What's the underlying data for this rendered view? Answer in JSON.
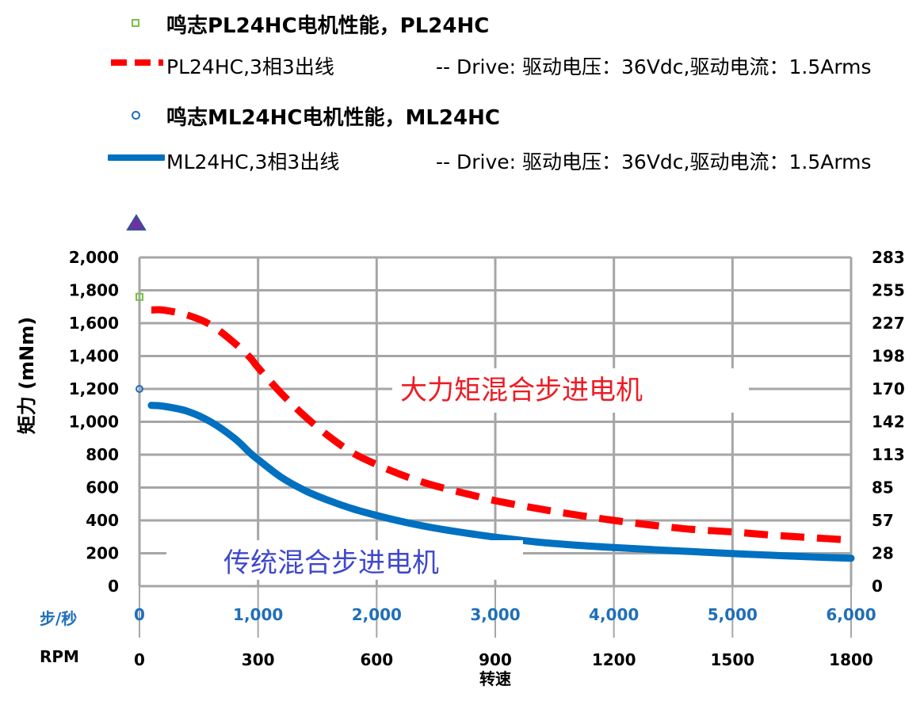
{
  "legend": {
    "pl_title": "鸣志PL24HC电机性能，PL24HC",
    "pl_series": "PL24HC,3相3出线",
    "pl_drive": "-- Drive:  驱动电压：36Vdc,驱动电流：1.5Arms",
    "ml_title": "鸣志ML24HC电机性能，ML24HC",
    "ml_series": "ML24HC,3相3出线",
    "ml_drive": "-- Drive:  驱动电压：36Vdc,驱动电流：1.5Arms"
  },
  "colors": {
    "pl": "#ff0000",
    "ml": "#0070c0",
    "grid": "#a6a6a6",
    "steps_label": "#1f6fb8",
    "annotation_ml": "#3f48cc",
    "annotation_pl": "#ed1c24",
    "triangle": "#7030a0"
  },
  "chart_data": {
    "type": "line",
    "ylabel": "矩力 (mNm)",
    "xlabel": "转速",
    "xlim_rpm": [
      0,
      1800
    ],
    "ylim": [
      0,
      2000
    ],
    "y2lim": [
      0,
      283
    ],
    "grid": true,
    "y_ticks": [
      "2,000",
      "1,800",
      "1,600",
      "1,400",
      "1,200",
      "1,000",
      "800",
      "600",
      "400",
      "200",
      "0"
    ],
    "y2_ticks": [
      "283",
      "255",
      "227",
      "198",
      "170",
      "142",
      "113",
      "85",
      "57",
      "28",
      "0"
    ],
    "x_rpm_ticks": [
      "0",
      "300",
      "600",
      "900",
      "1200",
      "1500",
      "1800"
    ],
    "x_steps_ticks": [
      "0",
      "1,000",
      "2,000",
      "3,000",
      "4,000",
      "5,000",
      "6,000"
    ],
    "x_steps_label": "步/秒",
    "x_rpm_label": "RPM",
    "annotations": [
      "大力矩混合步进电机",
      "传统混合步进电机"
    ],
    "series": [
      {
        "name": "PL24HC,3相3出线",
        "style": "dashed",
        "x": [
          30,
          60,
          120,
          180,
          240,
          280,
          300,
          360,
          420,
          480,
          540,
          600,
          660,
          720,
          780,
          840,
          900,
          1000,
          1100,
          1200,
          1300,
          1400,
          1500,
          1600,
          1700,
          1800
        ],
        "y": [
          1680,
          1680,
          1650,
          1590,
          1480,
          1390,
          1330,
          1170,
          1030,
          910,
          810,
          740,
          680,
          630,
          590,
          555,
          520,
          475,
          435,
          400,
          370,
          345,
          330,
          310,
          295,
          280
        ]
      },
      {
        "name": "ML24HC,3相3出线",
        "style": "solid",
        "x": [
          30,
          60,
          120,
          180,
          240,
          280,
          300,
          360,
          420,
          480,
          540,
          600,
          660,
          720,
          780,
          840,
          900,
          1000,
          1100,
          1200,
          1300,
          1400,
          1500,
          1600,
          1700,
          1800
        ],
        "y": [
          1100,
          1095,
          1065,
          1000,
          900,
          810,
          770,
          660,
          580,
          520,
          470,
          430,
          395,
          365,
          340,
          318,
          298,
          270,
          250,
          235,
          222,
          210,
          198,
          188,
          178,
          170
        ]
      }
    ],
    "markers": [
      {
        "series": "PL24HC,3相3出线",
        "x": 0,
        "y": 1760
      },
      {
        "series": "ML24HC,3相3出线",
        "x": 0,
        "y": 1200
      }
    ]
  }
}
